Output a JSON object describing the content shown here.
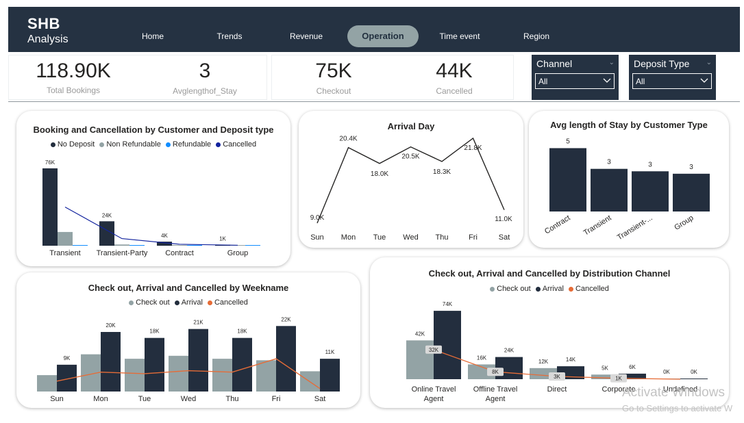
{
  "header": {
    "logo_title": "SHB",
    "logo_subtitle": "Analysis",
    "tabs": [
      {
        "label": "Home",
        "active": false
      },
      {
        "label": "Trends",
        "active": false
      },
      {
        "label": "Revenue",
        "active": false
      },
      {
        "label": "Operation",
        "active": true
      },
      {
        "label": "Time event",
        "active": false
      },
      {
        "label": "Region",
        "active": false
      }
    ]
  },
  "kpis": [
    {
      "value": "118.90K",
      "label": "Total Bookings"
    },
    {
      "value": "3",
      "label": "Avglengthof_Stay"
    },
    {
      "value": "75K",
      "label": "Checkout"
    },
    {
      "value": "44K",
      "label": "Cancelled"
    }
  ],
  "slicers": [
    {
      "title": "Channel",
      "value": "All"
    },
    {
      "title": "Deposit Type",
      "value": "All"
    }
  ],
  "colors": {
    "header_bg": "#253242",
    "no_deposit": "#232e3e",
    "non_refundable": "#93a3a5",
    "refundable": "#118dff",
    "cancelled_line": "#12239e",
    "checkout": "#93a3a5",
    "arrival": "#232e3e",
    "cancelled_orange": "#e66c37"
  },
  "chart_data": [
    {
      "id": "booking-cancellation",
      "type": "bar",
      "title": "Booking and Cancellation by Customer and Deposit type",
      "categories": [
        "Transient",
        "Transient-Party",
        "Contract",
        "Group"
      ],
      "series": [
        {
          "name": "No Deposit",
          "kind": "bar",
          "values": [
            76,
            24,
            4,
            1
          ]
        },
        {
          "name": "Non Refundable",
          "kind": "bar",
          "values": [
            13.5,
            1.2,
            0.4,
            0.1
          ]
        },
        {
          "name": "Refundable",
          "kind": "bar",
          "values": [
            0.1,
            0.1,
            0.1,
            0.1
          ]
        },
        {
          "name": "Cancelled",
          "kind": "line",
          "values": [
            38,
            7,
            1.5,
            0.5
          ]
        }
      ],
      "data_labels": [
        "76K",
        "24K",
        "4K",
        "1K"
      ],
      "units": "K",
      "ylim": [
        0,
        80
      ]
    },
    {
      "id": "arrival-day",
      "type": "line",
      "title": "Arrival Day",
      "categories": [
        "Sun",
        "Mon",
        "Tue",
        "Wed",
        "Thu",
        "Fri",
        "Sat"
      ],
      "values": [
        9.0,
        20.4,
        18.0,
        20.5,
        18.3,
        21.8,
        11.0
      ],
      "data_labels": [
        "9.0K",
        "20.4K",
        "18.0K",
        "20.5K",
        "18.3K",
        "21.8K",
        "11.0K"
      ],
      "units": "K"
    },
    {
      "id": "avg-stay",
      "type": "bar",
      "title": "Avg length of Stay by Customer Type",
      "categories": [
        "Contract",
        "Transient",
        "Transient-...",
        "Group"
      ],
      "values": [
        5.2,
        3.5,
        3.3,
        3.1
      ],
      "data_labels": [
        "5",
        "3",
        "3",
        "3"
      ]
    },
    {
      "id": "weekname",
      "type": "bar",
      "title": "Check out, Arrival and Cancelled by Weekname",
      "categories": [
        "Sun",
        "Mon",
        "Tue",
        "Wed",
        "Thu",
        "Fri",
        "Sat"
      ],
      "series": [
        {
          "name": "Check out",
          "kind": "bar",
          "values": [
            5.5,
            12.5,
            11.0,
            12.0,
            11.0,
            10.5,
            6.8
          ]
        },
        {
          "name": "Arrival",
          "kind": "bar",
          "values": [
            9,
            20,
            18,
            21,
            18,
            22,
            11
          ]
        },
        {
          "name": "Cancelled",
          "kind": "line",
          "values": [
            3.5,
            6.5,
            6.0,
            7.0,
            6.5,
            11.0,
            1.0
          ]
        }
      ],
      "data_labels": [
        "9K",
        "20K",
        "18K",
        "21K",
        "18K",
        "22K",
        "11K"
      ],
      "units": "K",
      "ylim": [
        0,
        24
      ]
    },
    {
      "id": "distribution",
      "type": "bar",
      "title": "Check out, Arrival and Cancelled by Distribution Channel",
      "categories": [
        "Online Travel Agent",
        "Offline Travel Agent",
        "Direct",
        "Corporate",
        "Undefined"
      ],
      "category_lines": [
        [
          "Online Travel",
          "Agent"
        ],
        [
          "Offline Travel",
          "Agent"
        ],
        [
          "Direct"
        ],
        [
          "Corporate"
        ],
        [
          "Undefined"
        ]
      ],
      "series": [
        {
          "name": "Check out",
          "kind": "bar",
          "values": [
            42,
            16,
            12,
            5,
            0
          ],
          "labels": [
            "42K",
            "16K",
            "12K",
            "5K",
            "0K"
          ]
        },
        {
          "name": "Arrival",
          "kind": "bar",
          "values": [
            74,
            24,
            14,
            6,
            0
          ],
          "labels": [
            "74K",
            "24K",
            "14K",
            "6K",
            "0K"
          ]
        },
        {
          "name": "Cancelled",
          "kind": "line",
          "values": [
            32,
            8,
            3,
            1,
            0
          ],
          "labels": [
            "32K",
            "8K",
            "3K",
            "1K",
            "0K"
          ]
        }
      ],
      "units": "K",
      "ylim": [
        0,
        80
      ]
    }
  ],
  "watermark": {
    "line1": "Activate Windows",
    "line2": "Go to Settings to activate W"
  }
}
